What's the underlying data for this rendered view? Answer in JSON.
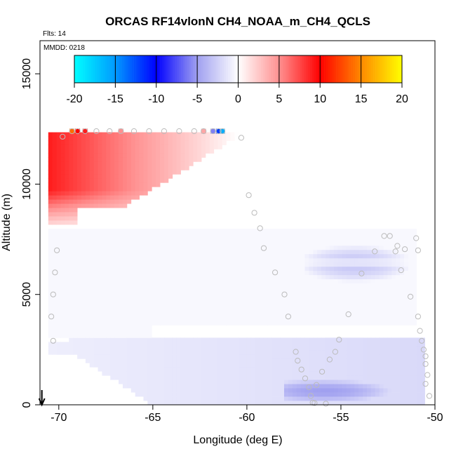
{
  "chart_data": {
    "type": "heatmap",
    "title": "ORCAS RF14vlonN CH4_NOAA_m_CH4_QCLS",
    "flights_label": "Flts: 14",
    "mmdd_label": "MMDD: 0218",
    "xlabel": "Longitude (deg E)",
    "ylabel": "Altitude (m)",
    "xlim": [
      -71,
      -50
    ],
    "ylim": [
      0,
      16500
    ],
    "xticks": [
      -70,
      -65,
      -60,
      -55,
      -50
    ],
    "yticks": [
      0,
      5000,
      10000,
      15000
    ],
    "xtick_labels": [
      "-70",
      "-65",
      "-60",
      "-55",
      "-50"
    ],
    "ytick_labels": [
      "0",
      "5000",
      "10000",
      "15000"
    ],
    "colorbar": {
      "range": [
        -20,
        20
      ],
      "ticks": [
        -20,
        -15,
        -10,
        -5,
        0,
        5,
        10,
        15,
        20
      ],
      "tick_labels": [
        "-20",
        "-15",
        "-10",
        "-5",
        "0",
        "5",
        "10",
        "15",
        "20"
      ],
      "stops": [
        {
          "v": -20,
          "color": "#00ffff"
        },
        {
          "v": -15,
          "color": "#0099ff"
        },
        {
          "v": -10,
          "color": "#0000ff"
        },
        {
          "v": -5,
          "color": "#a0a0f0"
        },
        {
          "v": 0,
          "color": "#ffffff"
        },
        {
          "v": 5,
          "color": "#ff9090"
        },
        {
          "v": 10,
          "color": "#ff0000"
        },
        {
          "v": 15,
          "color": "#ff8800"
        },
        {
          "v": 20,
          "color": "#ffff00"
        }
      ]
    },
    "regions": [
      {
        "lon": [
          -70.5,
          -60.0
        ],
        "alt": [
          8200,
          12400
        ],
        "peak": 9,
        "shape": "upper_plume"
      },
      {
        "lon": [
          -70.5,
          -51.0
        ],
        "alt": [
          3000,
          8000
        ],
        "peak": -1,
        "shape": "mid_band"
      },
      {
        "lon": [
          -57.0,
          -51.5
        ],
        "alt": [
          5500,
          7300
        ],
        "peak": -3,
        "shape": "blob"
      },
      {
        "lon": [
          -70.5,
          -50.5
        ],
        "alt": [
          0,
          3000
        ],
        "peak": -2,
        "shape": "low_band"
      },
      {
        "lon": [
          -58.0,
          -51.0
        ],
        "alt": [
          0,
          1400
        ],
        "peak": -5,
        "shape": "low_blob"
      }
    ],
    "top_track": [
      {
        "lon": -69.3,
        "alt": 12400,
        "value": 14
      },
      {
        "lon": -69.0,
        "alt": 12400,
        "value": 10
      },
      {
        "lon": -68.6,
        "alt": 12400,
        "value": 9
      },
      {
        "lon": -68.0,
        "alt": 12400,
        "value": 0
      },
      {
        "lon": -67.3,
        "alt": 12400,
        "value": 0
      },
      {
        "lon": -66.7,
        "alt": 12400,
        "value": 5
      },
      {
        "lon": -66.0,
        "alt": 12400,
        "value": 0
      },
      {
        "lon": -65.2,
        "alt": 12400,
        "value": 0
      },
      {
        "lon": -64.4,
        "alt": 12400,
        "value": 0
      },
      {
        "lon": -63.6,
        "alt": 12400,
        "value": 0
      },
      {
        "lon": -62.8,
        "alt": 12400,
        "value": 0
      },
      {
        "lon": -62.3,
        "alt": 12400,
        "value": 4
      },
      {
        "lon": -61.8,
        "alt": 12400,
        "value": -6
      },
      {
        "lon": -61.5,
        "alt": 12400,
        "value": -12
      },
      {
        "lon": -61.3,
        "alt": 12400,
        "value": -16
      }
    ],
    "flight_track": [
      [
        -69.8,
        12150
      ],
      [
        -60.3,
        12100
      ],
      [
        -59.9,
        9500
      ],
      [
        -59.6,
        8700
      ],
      [
        -59.3,
        8000
      ],
      [
        -59.1,
        7100
      ],
      [
        -58.5,
        6000
      ],
      [
        -58.0,
        5000
      ],
      [
        -57.8,
        4000
      ],
      [
        -57.4,
        2400
      ],
      [
        -57.3,
        2000
      ],
      [
        -57.1,
        1600
      ],
      [
        -56.9,
        1200
      ],
      [
        -56.7,
        800
      ],
      [
        -56.6,
        400
      ],
      [
        -56.5,
        100
      ],
      [
        -56.3,
        900
      ],
      [
        -56.0,
        1500
      ],
      [
        -55.6,
        2050
      ],
      [
        -55.3,
        2400
      ],
      [
        -55.1,
        2950
      ],
      [
        -54.6,
        4100
      ],
      [
        -53.9,
        5950
      ],
      [
        -53.2,
        6950
      ],
      [
        -52.7,
        7650
      ],
      [
        -52.4,
        7650
      ],
      [
        -52.1,
        6950
      ],
      [
        -51.8,
        6100
      ],
      [
        -51.3,
        4900
      ],
      [
        -50.9,
        4000
      ],
      [
        -50.8,
        3350
      ],
      [
        -50.7,
        2900
      ],
      [
        -50.6,
        2500
      ],
      [
        -50.5,
        2200
      ],
      [
        -50.5,
        1850
      ],
      [
        -50.4,
        1350
      ],
      [
        -50.5,
        950
      ],
      [
        -50.3,
        400
      ],
      [
        -55.8,
        50
      ],
      [
        -56.4,
        80
      ],
      [
        -70.1,
        7000
      ],
      [
        -70.2,
        6000
      ],
      [
        -70.3,
        5000
      ],
      [
        -70.4,
        4000
      ],
      [
        -70.3,
        2900
      ],
      [
        -51.6,
        7050
      ],
      [
        -52.0,
        7200
      ],
      [
        -51.0,
        7550
      ],
      [
        -50.9,
        7000
      ]
    ],
    "arrow_lon": -70.9
  }
}
